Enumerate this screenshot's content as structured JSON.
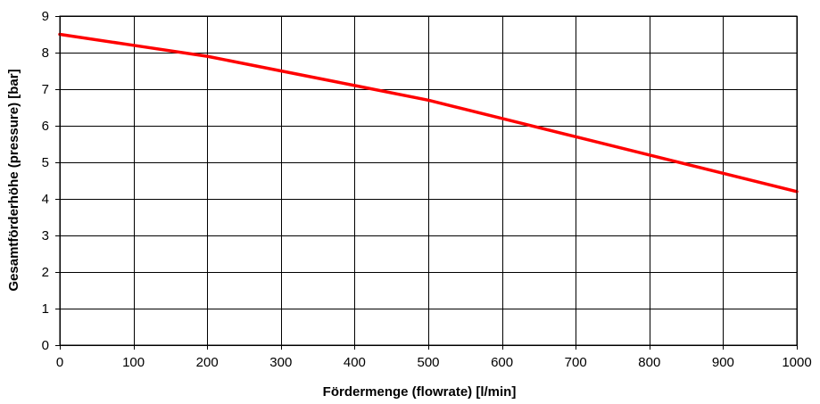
{
  "chart_data": {
    "type": "line",
    "title": "",
    "xlabel": "Fördermenge (flowrate) [l/min]",
    "ylabel": "Gesamtförderhöhe (pressure) [bar]",
    "xlim": [
      0,
      1000
    ],
    "ylim": [
      0,
      9
    ],
    "x_ticks": [
      "0",
      "100",
      "200",
      "300",
      "400",
      "500",
      "600",
      "700",
      "800",
      "900",
      "1000"
    ],
    "y_ticks": [
      "0",
      "1",
      "2",
      "3",
      "4",
      "5",
      "6",
      "7",
      "8",
      "9"
    ],
    "grid": true,
    "legend": "none",
    "series": [
      {
        "color": "#ff0000",
        "x": [
          0,
          100,
          200,
          300,
          400,
          500,
          550,
          600,
          700,
          800,
          900,
          1000
        ],
        "y": [
          8.5,
          8.2,
          7.9,
          7.5,
          7.1,
          6.7,
          6.45,
          6.2,
          5.7,
          5.2,
          4.7,
          4.2
        ]
      }
    ]
  }
}
